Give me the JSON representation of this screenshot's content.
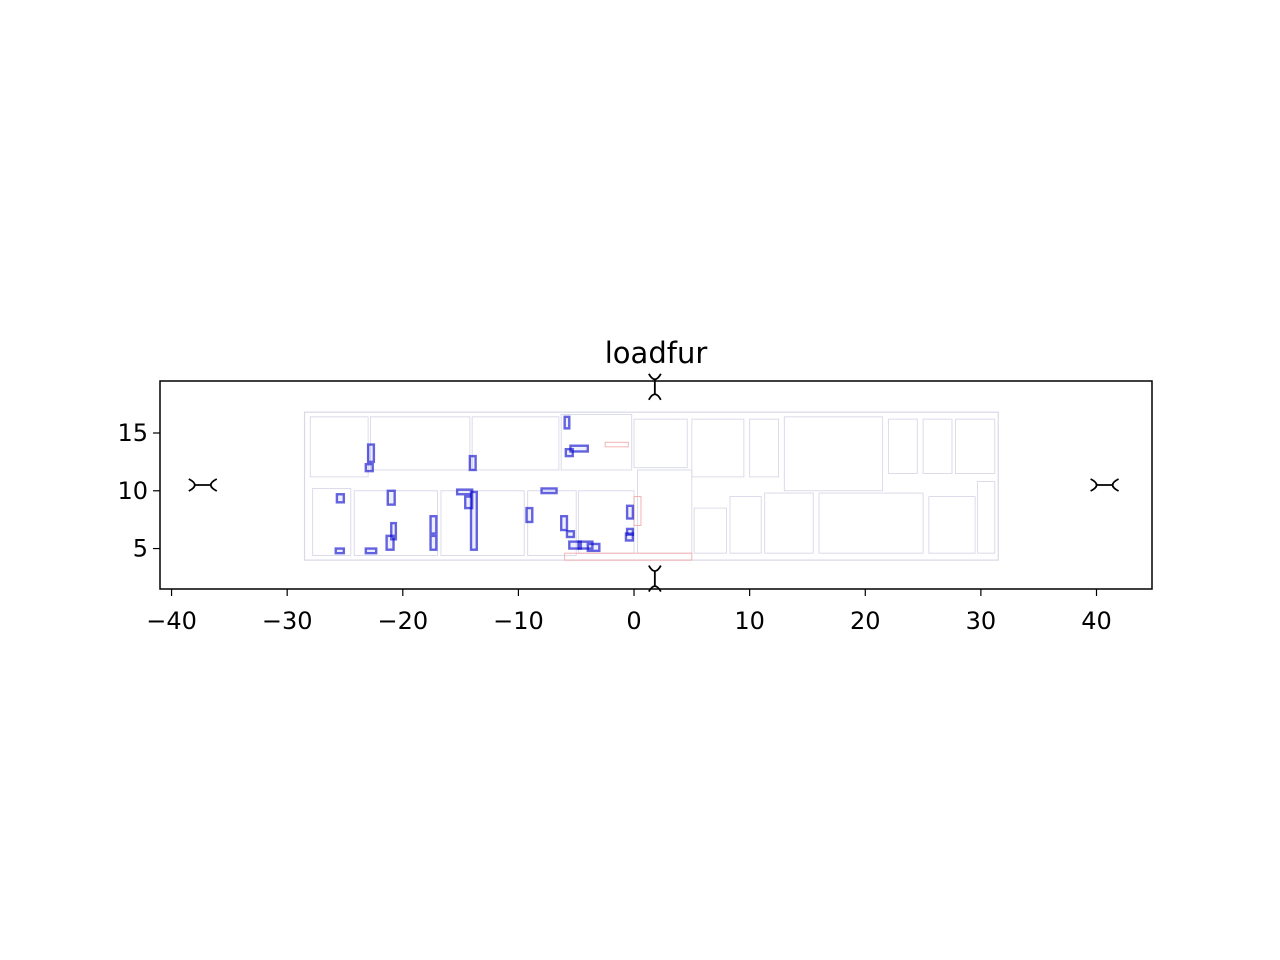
{
  "chart_data": {
    "type": "scatter",
    "title": "loadfur",
    "xlabel": "",
    "ylabel": "",
    "xlim": [
      -41.0,
      44.8
    ],
    "ylim": [
      1.5,
      19.5
    ],
    "x_ticks": [
      -40,
      -30,
      -20,
      -10,
      0,
      10,
      20,
      30,
      40
    ],
    "y_ticks": [
      5,
      10,
      15
    ],
    "x_tick_labels": [
      "−40",
      "−30",
      "−20",
      "−10",
      "0",
      "10",
      "20",
      "30",
      "40"
    ],
    "y_tick_labels": [
      "5",
      "10",
      "15"
    ],
    "grid": false,
    "legend": "none",
    "colors": {
      "furniture": "#0000cc",
      "walls": "#d8d8e8",
      "doors": "#f2a0a0",
      "marker": "#000000"
    },
    "markers": [
      {
        "x": 1.8,
        "y": 19.0,
        "orientation": "vertical"
      },
      {
        "x": 1.8,
        "y": 2.4,
        "orientation": "vertical"
      },
      {
        "x": -37.3,
        "y": 10.5,
        "orientation": "horizontal"
      },
      {
        "x": 40.7,
        "y": 10.5,
        "orientation": "horizontal"
      }
    ],
    "floorplan_outline": [
      {
        "x0": -28.5,
        "y0": 4.0,
        "x1": 31.5,
        "y1": 16.8
      }
    ],
    "rooms": [
      {
        "x0": -28.0,
        "y0": 11.2,
        "x1": -23.0,
        "y1": 16.4
      },
      {
        "x0": -22.8,
        "y0": 11.8,
        "x1": -14.2,
        "y1": 16.4
      },
      {
        "x0": -14.0,
        "y0": 11.8,
        "x1": -6.5,
        "y1": 16.4
      },
      {
        "x0": -6.3,
        "y0": 11.8,
        "x1": -0.2,
        "y1": 16.6
      },
      {
        "x0": 0.0,
        "y0": 12.0,
        "x1": 4.6,
        "y1": 16.2
      },
      {
        "x0": 5.0,
        "y0": 11.2,
        "x1": 9.5,
        "y1": 16.2
      },
      {
        "x0": 10.0,
        "y0": 11.2,
        "x1": 12.5,
        "y1": 16.2
      },
      {
        "x0": 13.0,
        "y0": 10.0,
        "x1": 21.5,
        "y1": 16.4
      },
      {
        "x0": 22.0,
        "y0": 11.5,
        "x1": 24.5,
        "y1": 16.2
      },
      {
        "x0": 25.0,
        "y0": 11.5,
        "x1": 27.5,
        "y1": 16.2
      },
      {
        "x0": 27.8,
        "y0": 11.5,
        "x1": 31.2,
        "y1": 16.2
      },
      {
        "x0": -27.8,
        "y0": 4.4,
        "x1": -24.5,
        "y1": 10.2
      },
      {
        "x0": -24.2,
        "y0": 4.4,
        "x1": -17.0,
        "y1": 10.0
      },
      {
        "x0": -16.7,
        "y0": 4.4,
        "x1": -9.5,
        "y1": 10.0
      },
      {
        "x0": -9.2,
        "y0": 4.4,
        "x1": -5.0,
        "y1": 10.0
      },
      {
        "x0": -4.8,
        "y0": 4.6,
        "x1": 0.0,
        "y1": 10.0
      },
      {
        "x0": 0.3,
        "y0": 4.6,
        "x1": 5.0,
        "y1": 11.8
      },
      {
        "x0": 5.2,
        "y0": 4.6,
        "x1": 8.0,
        "y1": 8.5
      },
      {
        "x0": 8.3,
        "y0": 4.6,
        "x1": 11.0,
        "y1": 9.5
      },
      {
        "x0": 11.3,
        "y0": 4.6,
        "x1": 15.5,
        "y1": 9.8
      },
      {
        "x0": 16.0,
        "y0": 4.6,
        "x1": 25.0,
        "y1": 9.8
      },
      {
        "x0": 25.5,
        "y0": 4.6,
        "x1": 29.5,
        "y1": 9.5
      },
      {
        "x0": 29.7,
        "y0": 4.6,
        "x1": 31.2,
        "y1": 10.8
      }
    ],
    "doors": [
      {
        "x0": -6.0,
        "y0": 4.0,
        "x1": 5.0,
        "y1": 4.6
      },
      {
        "x0": -2.5,
        "y0": 13.8,
        "x1": -0.5,
        "y1": 14.2
      },
      {
        "x0": 0.0,
        "y0": 7.0,
        "x1": 0.6,
        "y1": 9.5
      }
    ],
    "furniture": [
      {
        "x0": -6.0,
        "y0": 15.4,
        "x1": -5.6,
        "y1": 16.4
      },
      {
        "x0": -5.9,
        "y0": 13.0,
        "x1": -5.3,
        "y1": 13.6
      },
      {
        "x0": -5.5,
        "y0": 13.4,
        "x1": -4.0,
        "y1": 13.9
      },
      {
        "x0": -23.0,
        "y0": 12.5,
        "x1": -22.5,
        "y1": 14.0
      },
      {
        "x0": -23.2,
        "y0": 11.7,
        "x1": -22.6,
        "y1": 12.3
      },
      {
        "x0": -14.2,
        "y0": 11.8,
        "x1": -13.7,
        "y1": 13.0
      },
      {
        "x0": -25.7,
        "y0": 9.0,
        "x1": -25.1,
        "y1": 9.7
      },
      {
        "x0": -21.3,
        "y0": 8.8,
        "x1": -20.7,
        "y1": 10.0
      },
      {
        "x0": -15.3,
        "y0": 9.7,
        "x1": -14.0,
        "y1": 10.1
      },
      {
        "x0": -14.6,
        "y0": 8.5,
        "x1": -14.0,
        "y1": 9.5
      },
      {
        "x0": -14.1,
        "y0": 4.9,
        "x1": -13.6,
        "y1": 9.9
      },
      {
        "x0": -8.0,
        "y0": 9.8,
        "x1": -6.7,
        "y1": 10.2
      },
      {
        "x0": -9.3,
        "y0": 7.3,
        "x1": -8.8,
        "y1": 8.5
      },
      {
        "x0": -6.3,
        "y0": 6.6,
        "x1": -5.8,
        "y1": 7.8
      },
      {
        "x0": -5.8,
        "y0": 6.0,
        "x1": -5.2,
        "y1": 6.5
      },
      {
        "x0": -0.6,
        "y0": 7.6,
        "x1": -0.1,
        "y1": 8.7
      },
      {
        "x0": -0.7,
        "y0": 5.7,
        "x1": -0.1,
        "y1": 6.3
      },
      {
        "x0": -0.6,
        "y0": 6.2,
        "x1": -0.1,
        "y1": 6.7
      },
      {
        "x0": -17.6,
        "y0": 6.3,
        "x1": -17.1,
        "y1": 7.8
      },
      {
        "x0": -17.6,
        "y0": 4.9,
        "x1": -17.1,
        "y1": 6.1
      },
      {
        "x0": -21.0,
        "y0": 5.8,
        "x1": -20.6,
        "y1": 7.2
      },
      {
        "x0": -21.4,
        "y0": 4.9,
        "x1": -20.8,
        "y1": 6.1
      },
      {
        "x0": -25.8,
        "y0": 4.6,
        "x1": -25.1,
        "y1": 5.0
      },
      {
        "x0": -23.2,
        "y0": 4.6,
        "x1": -22.3,
        "y1": 5.0
      },
      {
        "x0": -5.6,
        "y0": 5.0,
        "x1": -4.6,
        "y1": 5.6
      },
      {
        "x0": -4.8,
        "y0": 5.0,
        "x1": -3.6,
        "y1": 5.6
      },
      {
        "x0": -4.0,
        "y0": 4.8,
        "x1": -3.0,
        "y1": 5.4
      }
    ]
  }
}
